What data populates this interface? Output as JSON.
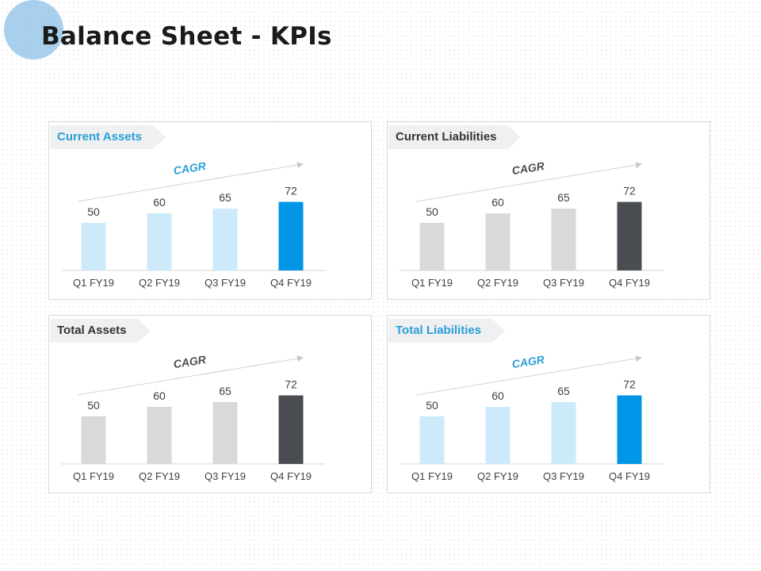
{
  "title": "Balance Sheet - KPIs",
  "colors": {
    "light_blue": "#cdeafb",
    "bright_blue": "#0095e6",
    "light_gray": "#d9d9d9",
    "dark_gray": "#4a4d52",
    "cagr_blue": "#2a9fd6",
    "cagr_gray": "#4d4d4d"
  },
  "chart_data": [
    {
      "type": "bar",
      "title": "Current Assets",
      "title_style": "blue",
      "categories": [
        "Q1 FY19",
        "Q2 FY19",
        "Q3 FY19",
        "Q4 FY19"
      ],
      "values": [
        50,
        60,
        65,
        72
      ],
      "annotation": "CAGR",
      "annotation_color": "#2a9fd6",
      "bar_colors": [
        "#cdeafb",
        "#cdeafb",
        "#cdeafb",
        "#0095e6"
      ],
      "ylim": [
        0,
        100
      ]
    },
    {
      "type": "bar",
      "title": "Current Liabilities",
      "title_style": "dark",
      "categories": [
        "Q1 FY19",
        "Q2 FY19",
        "Q3 FY19",
        "Q4 FY19"
      ],
      "values": [
        50,
        60,
        65,
        72
      ],
      "annotation": "CAGR",
      "annotation_color": "#4d4d4d",
      "bar_colors": [
        "#d9d9d9",
        "#d9d9d9",
        "#d9d9d9",
        "#4a4d52"
      ],
      "ylim": [
        0,
        100
      ]
    },
    {
      "type": "bar",
      "title": "Total Assets",
      "title_style": "dark",
      "categories": [
        "Q1 FY19",
        "Q2 FY19",
        "Q3 FY19",
        "Q4 FY19"
      ],
      "values": [
        50,
        60,
        65,
        72
      ],
      "annotation": "CAGR",
      "annotation_color": "#4d4d4d",
      "bar_colors": [
        "#d9d9d9",
        "#d9d9d9",
        "#d9d9d9",
        "#4a4d52"
      ],
      "ylim": [
        0,
        100
      ]
    },
    {
      "type": "bar",
      "title": "Total Liabilities",
      "title_style": "blue",
      "categories": [
        "Q1 FY19",
        "Q2 FY19",
        "Q3 FY19",
        "Q4 FY19"
      ],
      "values": [
        50,
        60,
        65,
        72
      ],
      "annotation": "CAGR",
      "annotation_color": "#2a9fd6",
      "bar_colors": [
        "#cdeafb",
        "#cdeafb",
        "#cdeafb",
        "#0095e6"
      ],
      "ylim": [
        0,
        100
      ]
    }
  ]
}
